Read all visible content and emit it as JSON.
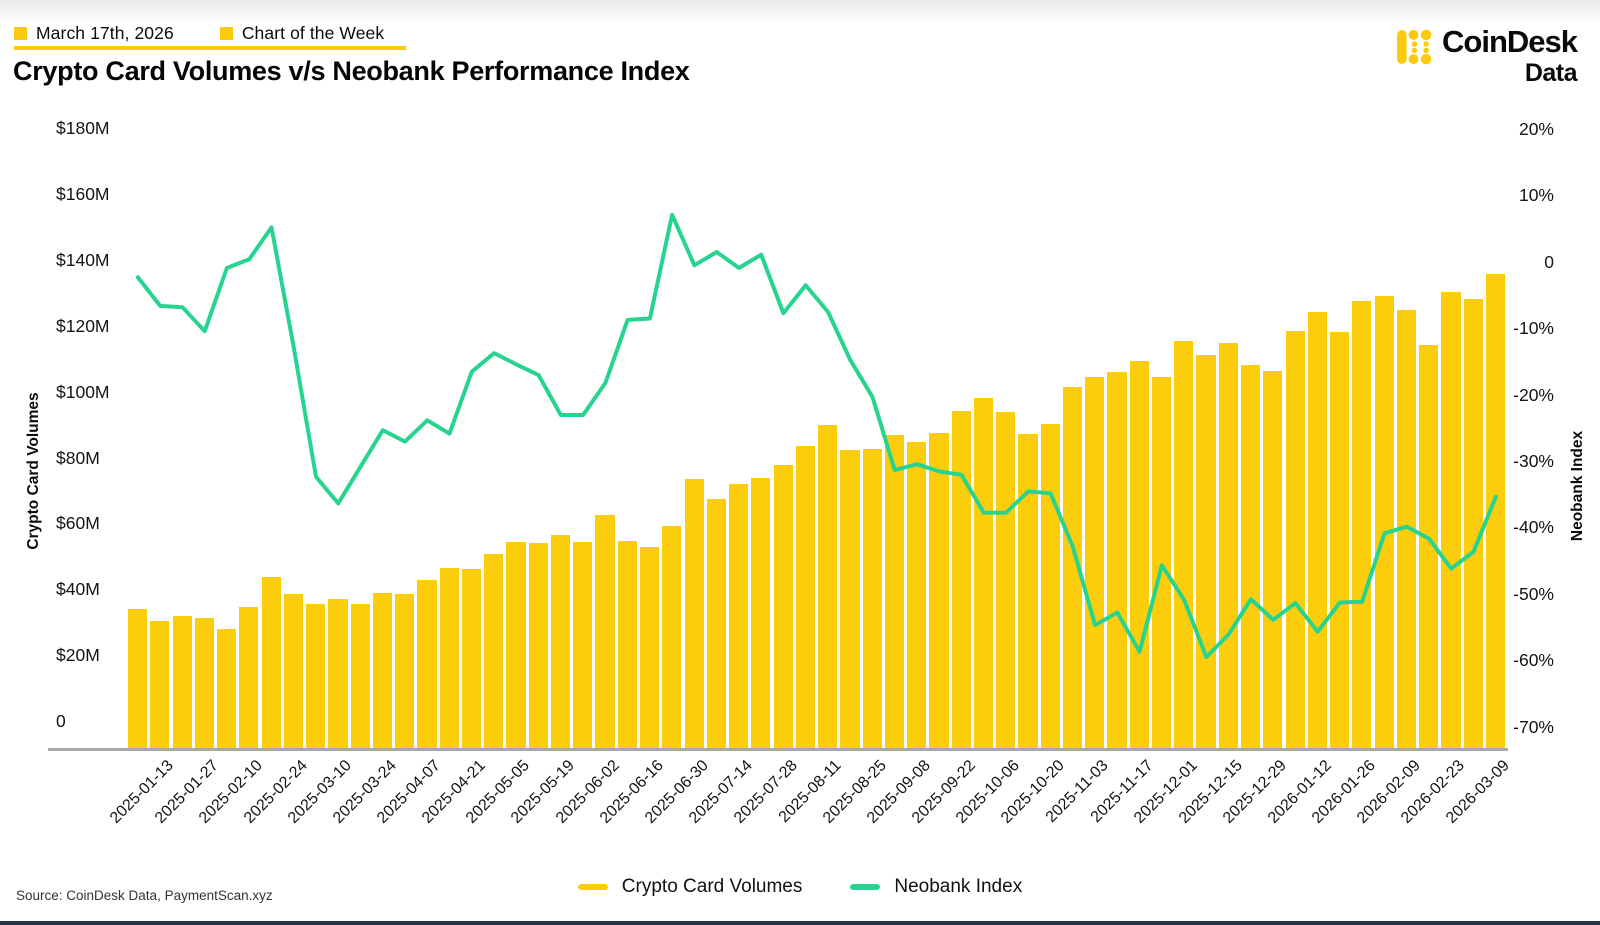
{
  "header": {
    "date": "March 17th, 2026",
    "tag": "Chart of the Week"
  },
  "title": "Crypto Card Volumes v/s Neobank Performance Index",
  "brand": {
    "name": "CoinDesk",
    "sub": "Data"
  },
  "source": "Source: CoinDesk Data, PaymentScan.xyz",
  "colors": {
    "bar": "#FCCD0C",
    "line": "#26D48F",
    "accent": "#FACB0D",
    "axis_line": "#A9A9A9",
    "footer_strip": "#24364A"
  },
  "axes": {
    "left": {
      "label": "Crypto Card Volumes",
      "ticks": [
        "$180M",
        "$160M",
        "$140M",
        "$120M",
        "$100M",
        "$80M",
        "$60M",
        "$40M",
        "$20M",
        "0"
      ]
    },
    "right": {
      "label": "Neobank Index",
      "ticks": [
        "20%",
        "10%",
        "0",
        "-10%",
        "-20%",
        "-30%",
        "-40%",
        "-50%",
        "-60%",
        "-70%"
      ]
    }
  },
  "legend": [
    {
      "label": "Crypto Card Volumes",
      "color": "#FCCD0C"
    },
    {
      "label": "Neobank Index",
      "color": "#26D48F"
    }
  ],
  "chart_data": {
    "type": "combo-bar-line",
    "title": "Crypto Card Volumes v/s Neobank Performance Index",
    "categories": [
      "2025-01-06",
      "2025-01-13",
      "2025-01-20",
      "2025-01-27",
      "2025-02-03",
      "2025-02-10",
      "2025-02-17",
      "2025-02-24",
      "2025-03-03",
      "2025-03-10",
      "2025-03-17",
      "2025-03-24",
      "2025-03-31",
      "2025-04-07",
      "2025-04-14",
      "2025-04-21",
      "2025-04-28",
      "2025-05-05",
      "2025-05-12",
      "2025-05-19",
      "2025-05-26",
      "2025-06-02",
      "2025-06-09",
      "2025-06-16",
      "2025-06-23",
      "2025-06-30",
      "2025-07-07",
      "2025-07-14",
      "2025-07-21",
      "2025-07-28",
      "2025-08-04",
      "2025-08-11",
      "2025-08-18",
      "2025-08-25",
      "2025-09-01",
      "2025-09-08",
      "2025-09-15",
      "2025-09-22",
      "2025-09-29",
      "2025-10-06",
      "2025-10-13",
      "2025-10-20",
      "2025-10-27",
      "2025-11-03",
      "2025-11-10",
      "2025-11-17",
      "2025-11-24",
      "2025-12-01",
      "2025-12-08",
      "2025-12-15",
      "2025-12-22",
      "2025-12-29",
      "2026-01-05",
      "2026-01-12",
      "2026-01-19",
      "2026-01-26",
      "2026-02-02",
      "2026-02-09",
      "2026-02-16",
      "2026-02-23",
      "2026-03-02",
      "2026-03-09"
    ],
    "x_tick_labels": [
      "2025-01-13",
      "2025-01-27",
      "2025-02-10",
      "2025-02-24",
      "2025-03-10",
      "2025-03-24",
      "2025-04-07",
      "2025-04-21",
      "2025-05-05",
      "2025-05-19",
      "2025-06-02",
      "2025-06-16",
      "2025-06-30",
      "2025-07-14",
      "2025-07-28",
      "2025-08-11",
      "2025-08-25",
      "2025-09-08",
      "2025-09-22",
      "2025-10-06",
      "2025-10-20",
      "2025-11-03",
      "2025-11-17",
      "2025-12-01",
      "2025-12-15",
      "2025-12-29",
      "2026-01-12",
      "2026-01-26",
      "2026-02-09",
      "2026-02-23",
      "2026-03-09"
    ],
    "series": [
      {
        "name": "Crypto Card Volumes",
        "type": "bar",
        "unit": "$M",
        "axis": "left",
        "color": "#FCCD0C",
        "values": [
          35.4,
          31.8,
          33.3,
          32.7,
          29.5,
          36.0,
          45.2,
          39.9,
          36.9,
          38.4,
          36.9,
          40.4,
          40.1,
          44.3,
          48.0,
          47.6,
          52.0,
          55.7,
          55.4,
          58.0,
          55.9,
          63.9,
          56.2,
          54.3,
          60.7,
          74.8,
          68.8,
          73.3,
          75.1,
          79.1,
          85.0,
          91.3,
          83.5,
          84.0,
          88.3,
          86.0,
          88.7,
          95.6,
          99.4,
          95.2,
          88.5,
          91.4,
          102.7,
          105.8,
          107.3,
          110.6,
          105.8,
          116.7,
          112.3,
          116.0,
          109.3,
          107.5,
          119.7,
          125.5,
          119.4,
          128.9,
          130.4,
          126.0,
          115.5,
          131.5,
          129.5,
          137.0
        ]
      },
      {
        "name": "Neobank Index",
        "type": "line",
        "unit": "%",
        "axis": "right",
        "color": "#26D48F",
        "values": [
          -2.3,
          -6.6,
          -6.8,
          -10.4,
          -0.9,
          0.4,
          5.2,
          -12.8,
          -32.3,
          -36.3,
          -30.8,
          -25.3,
          -27.0,
          -23.8,
          -25.8,
          -16.5,
          -13.7,
          -15.4,
          -17.0,
          -23.0,
          -23.0,
          -18.2,
          -8.7,
          -8.5,
          7.1,
          -0.5,
          1.5,
          -0.9,
          1.1,
          -7.7,
          -3.5,
          -7.5,
          -14.7,
          -20.3,
          -31.3,
          -30.4,
          -31.5,
          -32.0,
          -37.7,
          -37.7,
          -34.5,
          -34.8,
          -42.8,
          -54.6,
          -52.7,
          -58.6,
          -45.6,
          -50.8,
          -59.4,
          -56.0,
          -50.7,
          -53.8,
          -51.3,
          -55.6,
          -51.2,
          -51.1,
          -40.8,
          -39.8,
          -41.6,
          -46.1,
          -43.6,
          -35.3
        ]
      }
    ],
    "left_axis_range": [
      "0",
      "$180M"
    ],
    "right_axis_range": [
      "-70%",
      "20%"
    ],
    "grid": false,
    "legend_position": "bottom-center"
  }
}
